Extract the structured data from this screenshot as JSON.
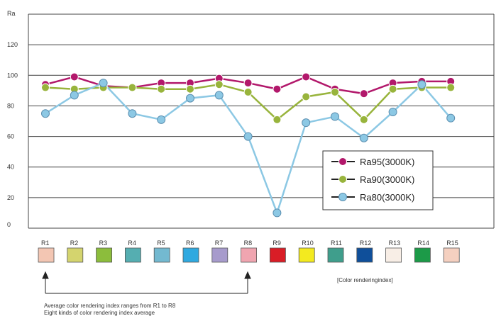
{
  "chart_data": {
    "type": "line",
    "ylabel": "Ra",
    "yticks": [
      "0",
      "20",
      "40",
      "60",
      "80",
      "100",
      "120"
    ],
    "ylim": [
      0,
      140
    ],
    "categories": [
      "R1",
      "R2",
      "R3",
      "R4",
      "R5",
      "R6",
      "R7",
      "R8",
      "R9",
      "R10",
      "R11",
      "R12",
      "R13",
      "R14",
      "R15"
    ],
    "swatch_colors": [
      "#f3c6b3",
      "#d4d46e",
      "#8cbd3c",
      "#55aeb1",
      "#73b9d0",
      "#2fa9e0",
      "#a79bcc",
      "#f0a5b0",
      "#d91d26",
      "#f3ea1f",
      "#3f9e8c",
      "#0f4f9a",
      "#f8eee6",
      "#1c9a48",
      "#f5d0c0"
    ],
    "series": [
      {
        "name": "Ra95(3000K)",
        "color": "#b2186b",
        "values": [
          94,
          99,
          93,
          92,
          95,
          95,
          98,
          95,
          91,
          99,
          91,
          88,
          95,
          96,
          96
        ]
      },
      {
        "name": "Ra90(3000K)",
        "color": "#98b43c",
        "values": [
          92,
          91,
          92,
          92,
          91,
          91,
          94,
          89,
          71,
          86,
          89,
          71,
          91,
          92,
          92
        ]
      },
      {
        "name": "Ra80(3000K)",
        "color": "#8cc8e4",
        "values": [
          75,
          87,
          95,
          75,
          71,
          85,
          87,
          60,
          10,
          69,
          73,
          59,
          76,
          94,
          72
        ]
      }
    ],
    "legend_position": "right-center",
    "grid": true,
    "xaxis_note": "[Color renderingindex]",
    "annotation_line1": "Average color rendering index ranges from R1 to R8",
    "annotation_line2": "Eight kinds of color rendering index average"
  }
}
